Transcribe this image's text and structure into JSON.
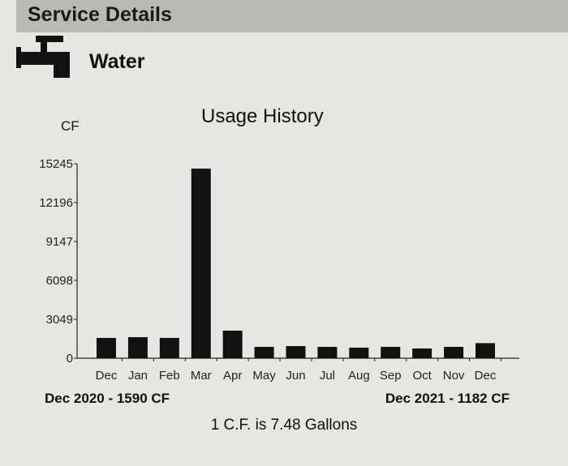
{
  "header": {
    "title": "Service Details"
  },
  "service": {
    "name": "Water",
    "icon": "faucet-icon"
  },
  "chart_data": {
    "type": "bar",
    "title": "Usage History",
    "ylabel": "CF",
    "xlabel": "",
    "categories": [
      "Dec",
      "Jan",
      "Feb",
      "Mar",
      "Apr",
      "May",
      "Jun",
      "Jul",
      "Aug",
      "Sep",
      "Oct",
      "Nov",
      "Dec"
    ],
    "values": [
      1590,
      1650,
      1590,
      14860,
      2160,
      890,
      950,
      890,
      830,
      890,
      760,
      890,
      1182
    ],
    "yticks": [
      "0",
      "3049",
      "6098",
      "9147",
      "12196",
      "15245"
    ],
    "ylim": [
      0,
      15245
    ],
    "grid": false,
    "bar_color": "#111111"
  },
  "footer": {
    "left": "Dec 2020 - 1590 CF",
    "right": "Dec 2021 - 1182 CF",
    "note": "1 C.F. is 7.48 Gallons"
  }
}
